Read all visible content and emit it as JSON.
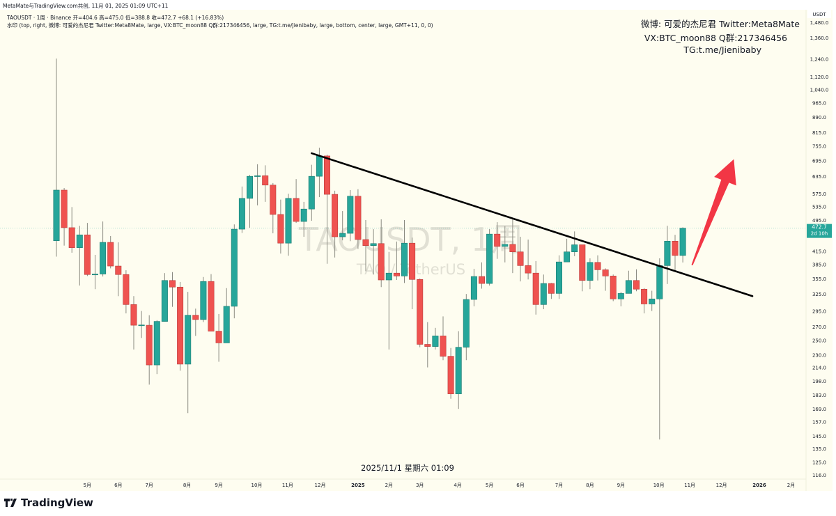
{
  "header": {
    "credit": "MetaMate与TradingView.com共创, 11月 01, 2025 01:09 UTC+11",
    "legend_line1": "TAOUSDT · 1周 · Binance  开=404.6  高=475.0  低=388.8  收=472.7  +68.1 (+16.83%)",
    "legend_line2": "水印 (top, right, 微博: 可爱的杰尼君 Twitter:Meta8Mate, large, VX:BTC_moon88 Q群:217346456, large, TG:t.me/Jienibaby, large, bottom, center, large, GMT+11, 0, 0)"
  },
  "watermark": {
    "lines": [
      "微博: 可爱的杰尼君 Twitter:Meta8Mate",
      "VX:BTC_moon88 Q群:217346456",
      "TG:t.me/Jienibaby"
    ],
    "symbol": "TAOUSDT, 1周",
    "description": "TAO / TetherUS"
  },
  "crosshair_date": "2025/11/1 星期六 01:09",
  "logo_text": "TradingView",
  "colors": {
    "up": "#26a69a",
    "down": "#ef5350",
    "background": "#fefdf0",
    "trendline": "#000000",
    "arrow": "#f23645"
  },
  "chart_data": {
    "type": "candlestick",
    "symbol": "TAOUSDT",
    "interval": "1周",
    "exchange": "Binance",
    "y_scale": "log",
    "currency": "USDT",
    "ylim": [
      116,
      1480
    ],
    "y_ticks": [
      1480,
      1360,
      1240,
      1120,
      1040,
      965,
      890,
      815,
      755,
      695,
      635,
      575,
      535,
      495,
      415,
      385,
      355,
      325,
      295,
      270,
      250,
      230,
      214,
      198,
      183,
      169,
      157,
      145,
      135,
      125,
      116
    ],
    "y_tick_labels": [
      "1,480.0",
      "1,360.0",
      "1,240.0",
      "1,120.0",
      "1,040.0",
      "965.0",
      "890.0",
      "815.0",
      "755.0",
      "695.0",
      "635.0",
      "575.0",
      "535.0",
      "495.0",
      "415.0",
      "385.0",
      "355.0",
      "325.0",
      "295.0",
      "270.0",
      "250.0",
      "230.0",
      "214.0",
      "198.0",
      "183.0",
      "169.0",
      "157.0",
      "145.0",
      "135.0",
      "125.0",
      "116.0"
    ],
    "x_ticks": [
      {
        "label": "5月",
        "bar": 4
      },
      {
        "label": "6月",
        "bar": 8
      },
      {
        "label": "7月",
        "bar": 12
      },
      {
        "label": "8月",
        "bar": 16.9
      },
      {
        "label": "9月",
        "bar": 21
      },
      {
        "label": "10月",
        "bar": 25.9
      },
      {
        "label": "11月",
        "bar": 29.9
      },
      {
        "label": "12月",
        "bar": 34.1
      },
      {
        "label": "2025",
        "bar": 39,
        "bold": true
      },
      {
        "label": "2月",
        "bar": 43
      },
      {
        "label": "3月",
        "bar": 47
      },
      {
        "label": "4月",
        "bar": 51.9
      },
      {
        "label": "5月",
        "bar": 56
      },
      {
        "label": "6月",
        "bar": 60
      },
      {
        "label": "7月",
        "bar": 65
      },
      {
        "label": "8月",
        "bar": 69
      },
      {
        "label": "9月",
        "bar": 73
      },
      {
        "label": "10月",
        "bar": 77.9
      },
      {
        "label": "11月",
        "bar": 81.9
      },
      {
        "label": "12月",
        "bar": 86
      },
      {
        "label": "2026",
        "bar": 90.9,
        "bold": true
      },
      {
        "label": "2月",
        "bar": 95
      }
    ],
    "last_price": {
      "value": 472.7,
      "label": "472.7",
      "countdown": "2d 10h"
    },
    "candles": [
      [
        440,
        1241,
        402,
        587
      ],
      [
        587,
        594,
        428,
        474
      ],
      [
        474,
        533,
        411,
        423
      ],
      [
        423,
        479,
        341,
        455
      ],
      [
        455,
        487,
        360,
        363
      ],
      [
        363,
        406,
        334,
        364
      ],
      [
        364,
        491,
        359,
        436
      ],
      [
        436,
        452,
        376,
        381
      ],
      [
        381,
        436,
        321,
        363
      ],
      [
        363,
        372,
        291,
        306
      ],
      [
        306,
        321,
        237,
        272
      ],
      [
        272,
        295,
        253,
        272.5
      ],
      [
        272,
        288,
        194,
        217
      ],
      [
        217,
        280,
        206,
        278
      ],
      [
        278,
        366,
        278,
        351
      ],
      [
        351,
        368,
        302,
        338
      ],
      [
        338,
        348,
        210,
        218
      ],
      [
        218,
        329,
        165,
        288
      ],
      [
        288,
        299,
        256,
        281
      ],
      [
        281,
        358,
        277,
        349
      ],
      [
        349,
        364,
        263,
        263
      ],
      [
        263,
        290,
        221,
        246
      ],
      [
        246,
        336,
        246,
        303
      ],
      [
        303,
        483,
        283,
        470
      ],
      [
        470,
        599,
        460,
        560
      ],
      [
        560,
        640,
        474,
        635
      ],
      [
        635,
        680,
        538,
        637
      ],
      [
        637,
        676,
        549,
        604
      ],
      [
        604,
        611,
        459,
        511
      ],
      [
        511,
        556,
        409,
        434
      ],
      [
        434,
        575,
        404,
        560
      ],
      [
        560,
        625,
        487,
        491
      ],
      [
        491,
        549,
        450,
        527
      ],
      [
        527,
        678,
        493,
        635
      ],
      [
        635,
        747,
        564,
        713
      ],
      [
        713,
        718,
        386,
        573
      ],
      [
        573,
        585,
        400,
        450
      ],
      [
        450,
        521,
        441,
        459
      ],
      [
        459,
        587,
        439,
        567
      ],
      [
        567,
        590,
        420,
        443
      ],
      [
        443,
        495,
        370,
        428
      ],
      [
        428,
        470,
        363,
        433
      ],
      [
        433,
        497,
        338,
        352
      ],
      [
        352,
        413,
        237,
        366
      ],
      [
        366,
        438,
        352,
        360
      ],
      [
        360,
        495,
        346,
        434
      ],
      [
        434,
        448,
        298,
        353
      ],
      [
        353,
        355,
        240,
        244
      ],
      [
        244,
        277,
        214,
        241
      ],
      [
        241,
        268,
        237,
        256
      ],
      [
        256,
        286,
        223,
        228
      ],
      [
        228,
        239,
        179,
        184
      ],
      [
        184,
        263,
        169,
        240
      ],
      [
        240,
        325,
        223,
        315
      ],
      [
        315,
        375,
        303,
        359
      ],
      [
        359,
        389,
        335,
        345
      ],
      [
        345,
        470,
        341,
        457
      ],
      [
        457,
        489,
        397,
        426
      ],
      [
        426,
        478,
        389,
        431
      ],
      [
        431,
        497,
        366,
        413
      ],
      [
        413,
        450,
        349,
        382
      ],
      [
        382,
        443,
        353,
        366
      ],
      [
        366,
        392,
        289,
        306
      ],
      [
        306,
        363,
        298,
        345
      ],
      [
        345,
        346,
        316,
        326
      ],
      [
        326,
        405,
        316,
        390
      ],
      [
        390,
        445,
        390,
        413
      ],
      [
        413,
        464,
        403,
        430
      ],
      [
        430,
        430,
        330,
        351
      ],
      [
        351,
        398,
        334,
        389
      ],
      [
        389,
        405,
        351,
        373
      ],
      [
        373,
        376,
        331,
        360
      ],
      [
        360,
        363,
        312,
        316
      ],
      [
        316,
        329,
        303,
        326
      ],
      [
        326,
        371,
        326,
        351
      ],
      [
        351,
        374,
        330,
        334
      ],
      [
        334,
        336,
        291,
        307
      ],
      [
        307,
        331,
        295,
        316
      ],
      [
        316,
        398,
        142,
        382
      ],
      [
        382,
        479,
        344,
        439
      ],
      [
        439,
        455,
        372,
        404.6
      ],
      [
        404.6,
        475.0,
        388.8,
        472.7
      ]
    ],
    "candle_format": [
      "open",
      "high",
      "low",
      "close"
    ],
    "annotations": [
      {
        "type": "trendline",
        "from": {
          "bar": 33,
          "price": 724
        },
        "to": {
          "bar": 90,
          "price": 321
        }
      },
      {
        "type": "arrow",
        "from": {
          "bar": 82.2,
          "price": 383
        },
        "to": {
          "bar": 87.6,
          "price": 700
        }
      }
    ]
  }
}
